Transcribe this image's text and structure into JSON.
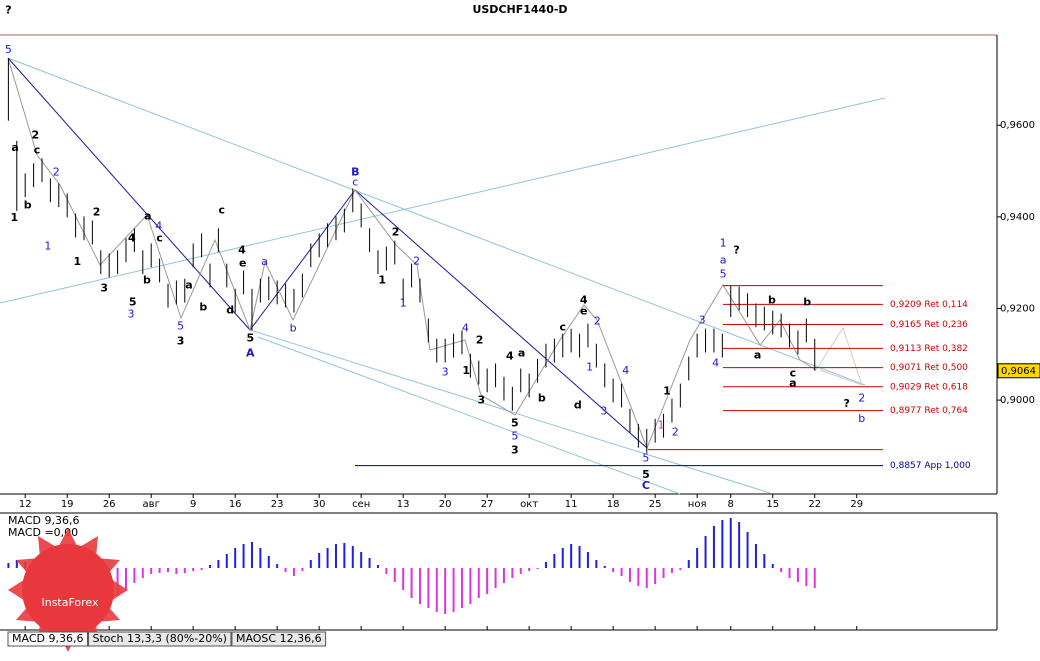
{
  "chart_data": [
    {
      "type": "ohlc",
      "title": "USDCHF1440-D",
      "color": "#000000",
      "xlim": [
        -1,
        117.7
      ],
      "ylim": [
        0.8795,
        0.9797
      ],
      "xticks": [
        {
          "value": 2,
          "label": "12"
        },
        {
          "value": 7,
          "label": "19"
        },
        {
          "value": 12,
          "label": "26"
        },
        {
          "value": 17,
          "label": "авг"
        },
        {
          "value": 22,
          "label": "9"
        },
        {
          "value": 27,
          "label": "16"
        },
        {
          "value": 32,
          "label": "23"
        },
        {
          "value": 37,
          "label": "30"
        },
        {
          "value": 42,
          "label": "сен"
        },
        {
          "value": 47,
          "label": "13"
        },
        {
          "value": 52,
          "label": "20"
        },
        {
          "value": 57,
          "label": "27"
        },
        {
          "value": 62,
          "label": "окт"
        },
        {
          "value": 67,
          "label": "11"
        },
        {
          "value": 72,
          "label": "18"
        },
        {
          "value": 77,
          "label": "25"
        },
        {
          "value": 82,
          "label": "ноя"
        },
        {
          "value": 86,
          "label": "8"
        },
        {
          "value": 91,
          "label": "15"
        },
        {
          "value": 96,
          "label": "22"
        },
        {
          "value": 101,
          "label": "29"
        }
      ],
      "yticks": [
        {
          "value": 0.96,
          "label": "0,9600"
        },
        {
          "value": 0.94,
          "label": "0,9400"
        },
        {
          "value": 0.92,
          "label": "0,9200"
        },
        {
          "value": 0.9,
          "label": "0,9000"
        }
      ],
      "high": [
        0.9746,
        0.9566,
        0.9495,
        0.9517,
        0.9528,
        0.9484,
        0.9473,
        0.9451,
        0.9407,
        0.9401,
        0.9392,
        0.9327,
        0.932,
        0.9327,
        0.9353,
        0.9375,
        0.9327,
        0.9342,
        0.9309,
        0.9254,
        0.9261,
        0.9265,
        0.9342,
        0.9364,
        0.9298,
        0.9375,
        0.9298,
        0.9243,
        0.9283,
        0.9243,
        0.9265,
        0.927,
        0.9261,
        0.9254,
        0.9243,
        0.9276,
        0.9342,
        0.9364,
        0.9386,
        0.9401,
        0.9418,
        0.9462,
        0.9429,
        0.9375,
        0.9327,
        0.9335,
        0.9348,
        0.9265,
        0.9298,
        0.9265,
        0.9178,
        0.9134,
        0.9134,
        0.9145,
        0.9152,
        0.9101,
        0.9086,
        0.9069,
        0.908,
        0.9051,
        0.9029,
        0.9069,
        0.9058,
        0.909,
        0.9123,
        0.9134,
        0.9145,
        0.9156,
        0.9145,
        0.9167,
        0.9123,
        0.908,
        0.9047,
        0.9036,
        0.8981,
        0.8948,
        0.8937,
        0.8959,
        0.897,
        0.9003,
        0.9036,
        0.9095,
        0.9145,
        0.9156,
        0.9156,
        0.9145,
        0.925,
        0.9248,
        0.9233,
        0.9211,
        0.9204,
        0.9195,
        0.9189,
        0.9167,
        0.9152,
        0.9178,
        0.9134
      ],
      "low": [
        0.961,
        0.9413,
        0.9443,
        0.9465,
        0.9476,
        0.9432,
        0.9421,
        0.9399,
        0.9355,
        0.9349,
        0.934,
        0.9275,
        0.9268,
        0.9275,
        0.9301,
        0.9323,
        0.9275,
        0.929,
        0.9257,
        0.9202,
        0.9209,
        0.9213,
        0.929,
        0.9312,
        0.9246,
        0.9323,
        0.9246,
        0.9191,
        0.9231,
        0.9152,
        0.9213,
        0.9218,
        0.9209,
        0.9202,
        0.9191,
        0.9224,
        0.929,
        0.9312,
        0.9334,
        0.9349,
        0.9366,
        0.941,
        0.9377,
        0.9323,
        0.9275,
        0.9283,
        0.9296,
        0.9213,
        0.9246,
        0.9213,
        0.9126,
        0.9082,
        0.9082,
        0.9093,
        0.91,
        0.9049,
        0.9034,
        0.9017,
        0.9028,
        0.8999,
        0.8977,
        0.9017,
        0.9006,
        0.9038,
        0.9071,
        0.9082,
        0.9093,
        0.9104,
        0.9093,
        0.9115,
        0.9071,
        0.9028,
        0.8995,
        0.8984,
        0.8929,
        0.8896,
        0.8885,
        0.8907,
        0.8918,
        0.8951,
        0.8984,
        0.9043,
        0.9093,
        0.9104,
        0.9104,
        0.9093,
        0.9181,
        0.9196,
        0.9181,
        0.9159,
        0.9152,
        0.9143,
        0.9137,
        0.9115,
        0.91,
        0.9126,
        0.9064
      ],
      "levels": [
        {
          "value": 0.925,
          "color": "#cc0000"
        },
        {
          "value": 0.9209,
          "label": "0,9209 Ret 0,114",
          "color": "#cc0000"
        },
        {
          "value": 0.9165,
          "label": "0,9165 Ret 0,236",
          "color": "#cc0000"
        },
        {
          "value": 0.9113,
          "label": "0,9113 Ret 0,382",
          "color": "#cc0000"
        },
        {
          "value": 0.9071,
          "label": "0,9071 Ret 0,500",
          "color": "#cc0000"
        },
        {
          "value": 0.9029,
          "label": "0,9029 Ret 0,618",
          "color": "#cc0000"
        },
        {
          "value": 0.8977,
          "label": "0,8977 Ret 0,764",
          "color": "#cc0000"
        },
        {
          "value": 0.8892,
          "color": "#cc0000"
        },
        {
          "value": 0.8857,
          "label": "0,8857 App 1,000",
          "color": "#000099"
        }
      ],
      "last_price": {
        "value": 0.9064,
        "label": "0,9064"
      },
      "annotations": [
        {
          "text": "?",
          "x": 0,
          "y": 0.9851,
          "color": "#000000"
        },
        {
          "text": "5",
          "x": 0,
          "y": 0.9764,
          "color": "#1a1acc"
        },
        {
          "text": "a",
          "x": 0.8,
          "y": 0.955,
          "color": "#000000"
        },
        {
          "text": "2",
          "x": 3.2,
          "y": 0.9578,
          "color": "#000000"
        },
        {
          "text": "c",
          "x": 3.4,
          "y": 0.9545,
          "color": "#000000"
        },
        {
          "text": "b",
          "x": 2.3,
          "y": 0.9425,
          "color": "#000000"
        },
        {
          "text": "1",
          "x": 0.7,
          "y": 0.9397,
          "color": "#000000"
        },
        {
          "text": "2",
          "x": 5.7,
          "y": 0.9497,
          "color": "#1a1acc"
        },
        {
          "text": "1",
          "x": 4.7,
          "y": 0.9335,
          "color": "#1a1acc"
        },
        {
          "text": "2",
          "x": 10.5,
          "y": 0.941,
          "color": "#000000"
        },
        {
          "text": "1",
          "x": 8.2,
          "y": 0.9301,
          "color": "#000000"
        },
        {
          "text": "a",
          "x": 16.6,
          "y": 0.9401,
          "color": "#000000"
        },
        {
          "text": "4",
          "x": 17.9,
          "y": 0.9379,
          "color": "#1a1acc"
        },
        {
          "text": "c",
          "x": 18.0,
          "y": 0.9353,
          "color": "#000000"
        },
        {
          "text": "4",
          "x": 14.7,
          "y": 0.9353,
          "color": "#000000"
        },
        {
          "text": "b",
          "x": 16.5,
          "y": 0.9261,
          "color": "#000000"
        },
        {
          "text": "3",
          "x": 11.4,
          "y": 0.9244,
          "color": "#000000"
        },
        {
          "text": "5",
          "x": 14.8,
          "y": 0.9213,
          "color": "#000000"
        },
        {
          "text": "3",
          "x": 14.6,
          "y": 0.9187,
          "color": "#1a1acc"
        },
        {
          "text": "a",
          "x": 21.5,
          "y": 0.925,
          "color": "#000000"
        },
        {
          "text": "b",
          "x": 23.2,
          "y": 0.9202,
          "color": "#000000"
        },
        {
          "text": "5",
          "x": 20.5,
          "y": 0.9161,
          "color": "#1a1acc"
        },
        {
          "text": "3",
          "x": 20.5,
          "y": 0.9128,
          "color": "#000000"
        },
        {
          "text": "c",
          "x": 25.4,
          "y": 0.9414,
          "color": "#000000"
        },
        {
          "text": "4",
          "x": 27.8,
          "y": 0.9327,
          "color": "#000000"
        },
        {
          "text": "e",
          "x": 27.9,
          "y": 0.9298,
          "color": "#000000"
        },
        {
          "text": "d",
          "x": 26.4,
          "y": 0.9196,
          "color": "#000000"
        },
        {
          "text": "a",
          "x": 30.5,
          "y": 0.9301,
          "color": "#1a1acc"
        },
        {
          "text": "5",
          "x": 28.8,
          "y": 0.9134,
          "color": "#000000"
        },
        {
          "text": "A",
          "x": 28.8,
          "y": 0.9102,
          "color": "#1a1acc"
        },
        {
          "text": "b",
          "x": 33.9,
          "y": 0.9156,
          "color": "#1a1acc"
        },
        {
          "text": "B",
          "x": 41.3,
          "y": 0.9497,
          "color": "#1a1acc"
        },
        {
          "text": "c",
          "x": 41.3,
          "y": 0.9475,
          "color": "#1a1acc"
        },
        {
          "text": "2",
          "x": 46.1,
          "y": 0.9366,
          "color": "#000000"
        },
        {
          "text": "2",
          "x": 48.6,
          "y": 0.9303,
          "color": "#1a1acc"
        },
        {
          "text": "1",
          "x": 44.5,
          "y": 0.9261,
          "color": "#000000"
        },
        {
          "text": "1",
          "x": 47.0,
          "y": 0.9211,
          "color": "#1a1acc"
        },
        {
          "text": "4",
          "x": 54.4,
          "y": 0.9156,
          "color": "#1a1acc"
        },
        {
          "text": "2",
          "x": 56.1,
          "y": 0.913,
          "color": "#000000"
        },
        {
          "text": "3",
          "x": 52.0,
          "y": 0.906,
          "color": "#1a1acc"
        },
        {
          "text": "1",
          "x": 54.5,
          "y": 0.9064,
          "color": "#000000"
        },
        {
          "text": "4",
          "x": 59.7,
          "y": 0.9095,
          "color": "#000000"
        },
        {
          "text": "a",
          "x": 61.1,
          "y": 0.9102,
          "color": "#000000"
        },
        {
          "text": "3",
          "x": 56.3,
          "y": 0.8999,
          "color": "#000000"
        },
        {
          "text": "b",
          "x": 63.5,
          "y": 0.9003,
          "color": "#000000"
        },
        {
          "text": "5",
          "x": 60.3,
          "y": 0.8949,
          "color": "#000000"
        },
        {
          "text": "5",
          "x": 60.3,
          "y": 0.892,
          "color": "#1a1acc"
        },
        {
          "text": "3",
          "x": 60.3,
          "y": 0.889,
          "color": "#000000"
        },
        {
          "text": "4",
          "x": 68.5,
          "y": 0.9217,
          "color": "#000000"
        },
        {
          "text": "e",
          "x": 68.5,
          "y": 0.9193,
          "color": "#000000"
        },
        {
          "text": "c",
          "x": 66.0,
          "y": 0.9158,
          "color": "#000000"
        },
        {
          "text": "2",
          "x": 70.1,
          "y": 0.9172,
          "color": "#1a1acc"
        },
        {
          "text": "1",
          "x": 69.2,
          "y": 0.9071,
          "color": "#1a1acc"
        },
        {
          "text": "d",
          "x": 67.8,
          "y": 0.8988,
          "color": "#000000"
        },
        {
          "text": "3",
          "x": 70.9,
          "y": 0.8975,
          "color": "#1a1acc"
        },
        {
          "text": "4",
          "x": 73.5,
          "y": 0.9064,
          "color": "#1a1acc"
        },
        {
          "text": "1",
          "x": 78.4,
          "y": 0.9019,
          "color": "#000000"
        },
        {
          "text": "1",
          "x": 77.7,
          "y": 0.8944,
          "color": "#cc33cc"
        },
        {
          "text": "2",
          "x": 79.4,
          "y": 0.8929,
          "color": "#1a1acc"
        },
        {
          "text": "5",
          "x": 75.9,
          "y": 0.8872,
          "color": "#1a1acc"
        },
        {
          "text": "5",
          "x": 75.9,
          "y": 0.8837,
          "color": "#000000"
        },
        {
          "text": "C",
          "x": 75.9,
          "y": 0.8813,
          "color": "#1a1acc"
        },
        {
          "text": "3",
          "x": 82.6,
          "y": 0.9174,
          "color": "#1a1acc"
        },
        {
          "text": "4",
          "x": 84.2,
          "y": 0.908,
          "color": "#1a1acc"
        },
        {
          "text": "1",
          "x": 85.1,
          "y": 0.9342,
          "color": "#1a1acc"
        },
        {
          "text": "?",
          "x": 86.7,
          "y": 0.9327,
          "color": "#000000"
        },
        {
          "text": "a",
          "x": 85.1,
          "y": 0.9305,
          "color": "#1a1acc"
        },
        {
          "text": "5",
          "x": 85.1,
          "y": 0.9274,
          "color": "#1a1acc"
        },
        {
          "text": "b",
          "x": 90.9,
          "y": 0.9217,
          "color": "#000000"
        },
        {
          "text": "b",
          "x": 95.1,
          "y": 0.9213,
          "color": "#000000"
        },
        {
          "text": "a",
          "x": 89.2,
          "y": 0.9097,
          "color": "#000000"
        },
        {
          "text": "c",
          "x": 93.4,
          "y": 0.9058,
          "color": "#000000"
        },
        {
          "text": "a",
          "x": 93.4,
          "y": 0.9036,
          "color": "#000000"
        },
        {
          "text": "?",
          "x": 99.8,
          "y": 0.8992,
          "color": "#000000"
        },
        {
          "text": "2",
          "x": 101.6,
          "y": 0.9003,
          "color": "#1a1acc"
        },
        {
          "text": "b",
          "x": 101.6,
          "y": 0.8959,
          "color": "#1a1acc"
        }
      ]
    },
    {
      "type": "histogram",
      "title": "MACD 9,36,6",
      "value_label": "MACD =0,00",
      "positive_color": "#1f1fdd",
      "negative_color": "#dd33dd",
      "values": [
        5,
        8,
        6,
        2,
        -5,
        -12,
        -20,
        -28,
        -35,
        -40,
        -42,
        -40,
        -35,
        -28,
        -22,
        -15,
        -10,
        -6,
        -5,
        -4,
        -6,
        -5,
        -3,
        -2,
        3,
        8,
        14,
        20,
        24,
        26,
        20,
        12,
        4,
        -4,
        -8,
        -3,
        8,
        15,
        20,
        24,
        25,
        22,
        16,
        10,
        3,
        -6,
        -14,
        -22,
        -30,
        -36,
        -40,
        -44,
        -46,
        -44,
        -40,
        -36,
        -30,
        -26,
        -20,
        -15,
        -10,
        -6,
        -3,
        -1,
        6,
        14,
        20,
        24,
        22,
        16,
        8,
        2,
        -4,
        -8,
        -14,
        -18,
        -20,
        -16,
        -10,
        -5,
        -2,
        8,
        20,
        32,
        42,
        48,
        50,
        46,
        36,
        24,
        14,
        4,
        -4,
        -10,
        -14,
        -18,
        -20
      ]
    }
  ],
  "tabs": [
    "MACD 9,36,6",
    "Stoch 13,3,3 (80%-20%)",
    "MAOSC 12,36,6"
  ],
  "logo": "InstaForex"
}
